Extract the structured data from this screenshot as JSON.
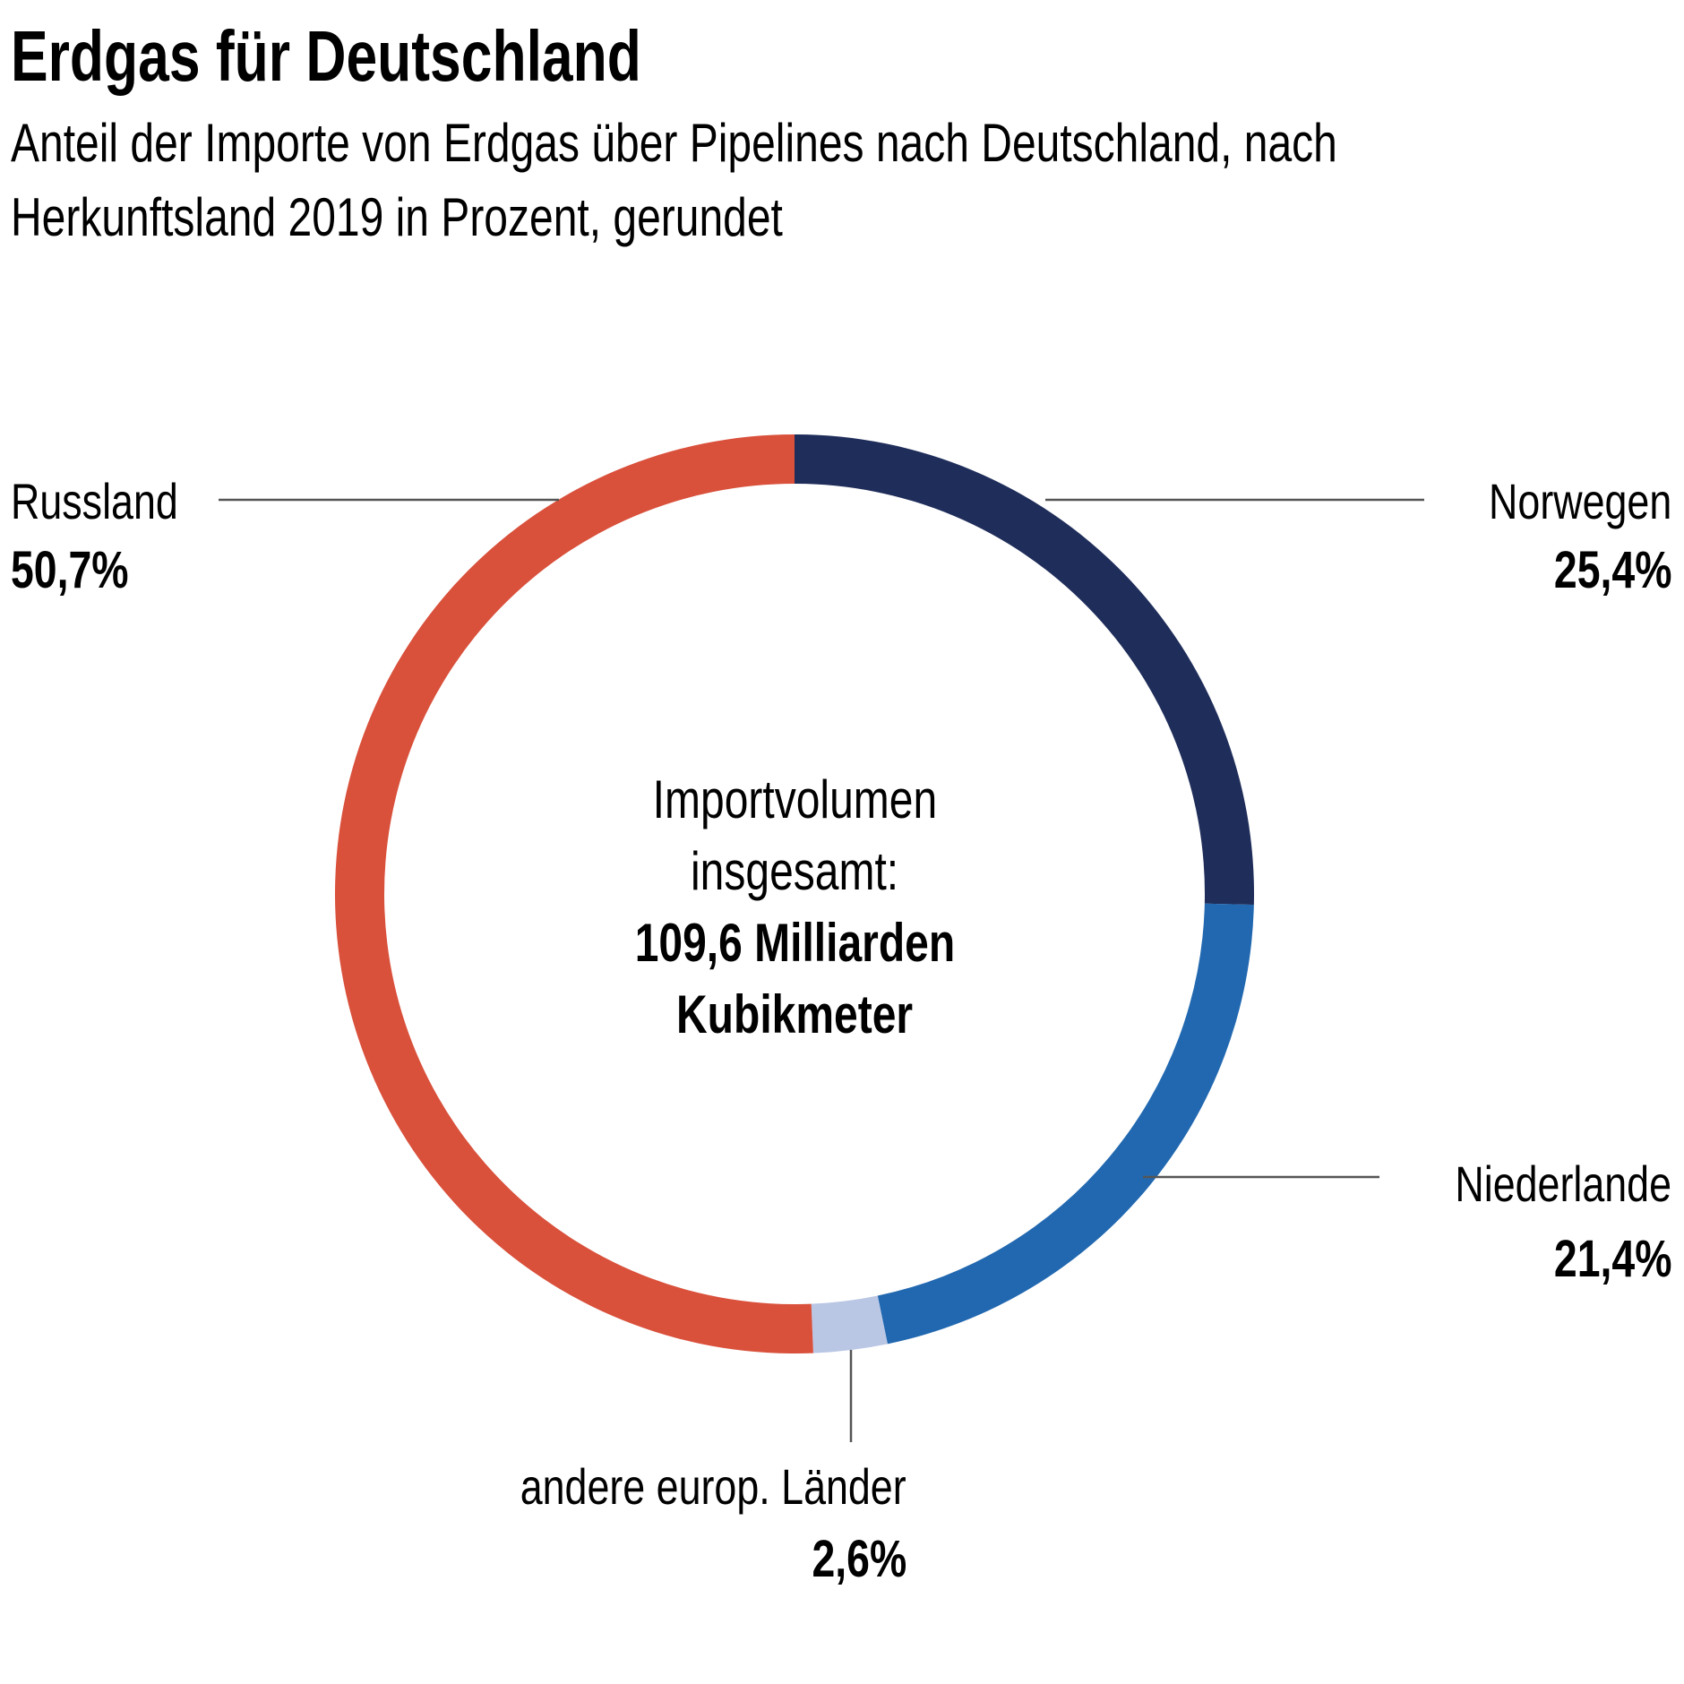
{
  "header": {
    "title": "Erdgas für Deutschland",
    "subtitle_lines": [
      "Anteil der Importe von Erdgas über Pipelines nach Deutschland, nach",
      "Herkunftsland 2019 in Prozent, gerundet"
    ]
  },
  "center": {
    "lines": [
      "Importvolumen",
      "insgesamt:"
    ],
    "bold_lines": [
      "109,6 Milliarden",
      "Kubikmeter"
    ]
  },
  "labels": {
    "russland": {
      "name": "Russland",
      "value": "50,7%"
    },
    "norwegen": {
      "name": "Norwegen",
      "value": "25,4%"
    },
    "niederlande": {
      "name": "Niederlande",
      "value": "21,4%"
    },
    "andere": {
      "name": "andere europ. Länder",
      "value": "2,6%"
    }
  },
  "colors": {
    "leader_line": "#555555",
    "background": "#ffffff",
    "text": "#000000"
  },
  "chart_data": {
    "type": "pie",
    "variant": "donut",
    "title": "Erdgas für Deutschland",
    "subtitle": "Anteil der Importe von Erdgas über Pipelines nach Deutschland, nach Herkunftsland 2019 in Prozent, gerundet",
    "unit": "%",
    "start": "12 o'clock",
    "direction": "clockwise",
    "center_label": "Importvolumen insgesamt: 109,6 Milliarden Kubikmeter",
    "total": 109.6,
    "total_unit": "Milliarden Kubikmeter",
    "slices": [
      {
        "key": "norwegen",
        "label": "Norwegen",
        "value": 25.4,
        "display": "25,4%",
        "color": "#1f2d5a"
      },
      {
        "key": "niederlande",
        "label": "Niederlande",
        "value": 21.4,
        "display": "21,4%",
        "color": "#2168b0"
      },
      {
        "key": "andere",
        "label": "andere europ. Länder",
        "value": 2.6,
        "display": "2,6%",
        "color": "#b9c6e4"
      },
      {
        "key": "russland",
        "label": "Russland",
        "value": 50.7,
        "display": "50,7%",
        "color": "#d9503b"
      }
    ],
    "legend": "none (direct labels with leader lines)"
  }
}
